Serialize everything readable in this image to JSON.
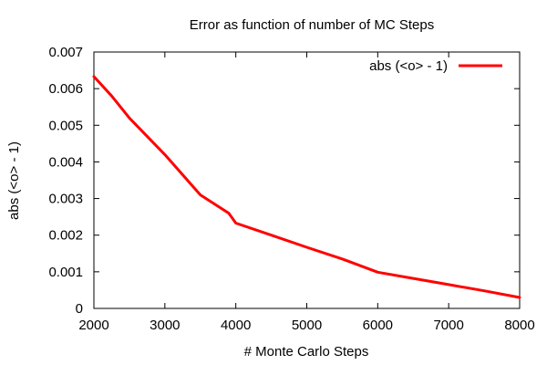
{
  "chart_data": {
    "type": "line",
    "title": "Error as function of number of MC Steps",
    "xlabel": "# Monte Carlo Steps",
    "ylabel": "abs (<o> - 1)",
    "xlim": [
      2000,
      8000
    ],
    "ylim": [
      0,
      0.007
    ],
    "x_ticks": [
      2000,
      3000,
      4000,
      5000,
      6000,
      7000,
      8000
    ],
    "x_tick_labels": [
      "2000",
      "3000",
      "4000",
      "5000",
      "6000",
      "7000",
      "8000"
    ],
    "y_ticks": [
      0,
      0.001,
      0.002,
      0.003,
      0.004,
      0.005,
      0.006,
      0.007
    ],
    "y_tick_labels": [
      "0",
      "0.001",
      "0.002",
      "0.003",
      "0.004",
      "0.005",
      "0.006",
      "0.007"
    ],
    "grid": false,
    "legend_position": "top-right",
    "series": [
      {
        "name": "abs (<o> - 1)",
        "color": "#ff0000",
        "x": [
          2000,
          2250,
          2500,
          3000,
          3500,
          3900,
          4000,
          4500,
          5000,
          5500,
          6000,
          6500,
          7000,
          7500,
          8000
        ],
        "y": [
          0.00633,
          0.0058,
          0.0052,
          0.0042,
          0.0031,
          0.0026,
          0.00233,
          0.002,
          0.00167,
          0.00135,
          0.00099,
          0.00082,
          0.00065,
          0.00048,
          0.0003
        ]
      }
    ]
  }
}
